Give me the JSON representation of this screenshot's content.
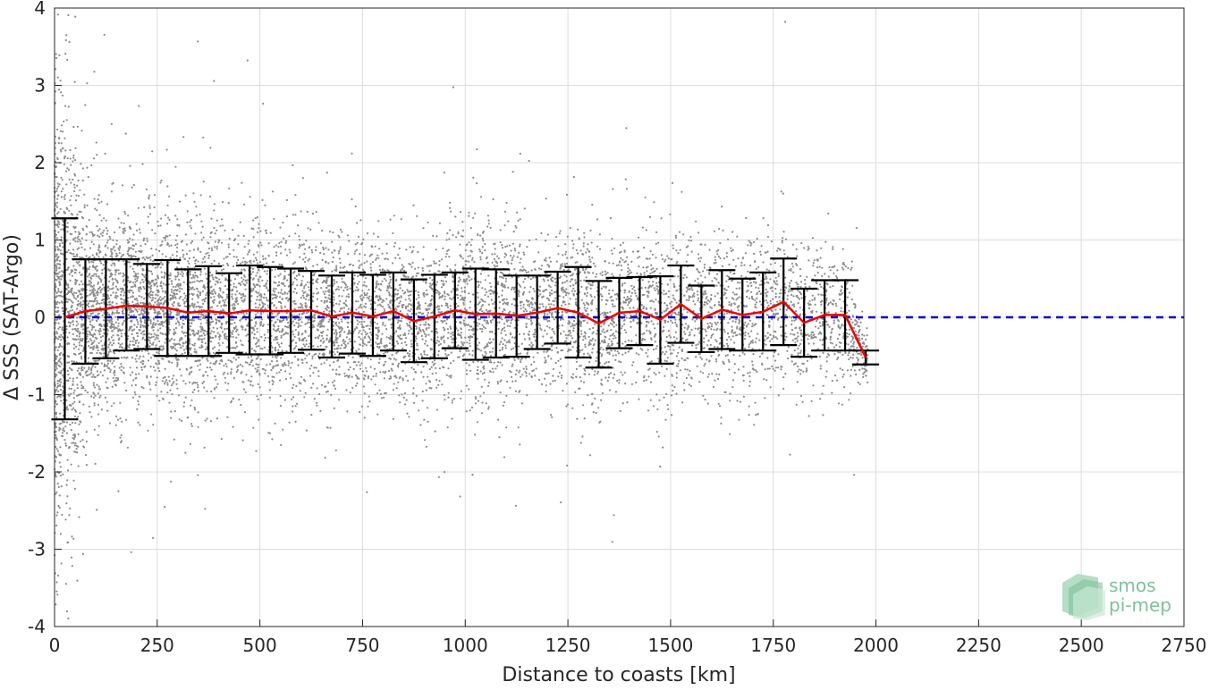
{
  "chart_data": {
    "type": "scatter",
    "title": "",
    "xlabel": "Distance to coasts [km]",
    "ylabel": "Δ SSS (SAT-Argo)",
    "xlim": [
      0,
      2750
    ],
    "ylim": [
      -4,
      4
    ],
    "xticks": [
      0,
      250,
      500,
      750,
      1000,
      1250,
      1500,
      1750,
      2000,
      2250,
      2500,
      2750
    ],
    "yticks": [
      -4,
      -3,
      -2,
      -1,
      0,
      1,
      2,
      3,
      4
    ],
    "grid": true,
    "reference_line": {
      "y": 0,
      "style": "dashed",
      "color": "#0000dd"
    },
    "series": [
      {
        "kind": "scatter",
        "color": "#8c8c8c",
        "extent_km": [
          0,
          1980
        ],
        "description_points": "dense cloud of individual match-up differences"
      },
      {
        "kind": "line-with-errorbars",
        "color": "#ee0000",
        "errorbar_color": "#000000",
        "x": [
          25,
          75,
          125,
          175,
          225,
          275,
          325,
          375,
          425,
          475,
          525,
          575,
          625,
          675,
          725,
          775,
          825,
          875,
          925,
          975,
          1025,
          1075,
          1125,
          1175,
          1225,
          1275,
          1325,
          1375,
          1425,
          1475,
          1525,
          1575,
          1625,
          1675,
          1725,
          1775,
          1825,
          1875,
          1925,
          1975
        ],
        "mean": [
          0.0,
          0.08,
          0.11,
          0.15,
          0.14,
          0.12,
          0.06,
          0.08,
          0.05,
          0.09,
          0.08,
          0.08,
          0.09,
          0.01,
          0.06,
          0.01,
          0.08,
          -0.05,
          0.01,
          0.09,
          0.04,
          0.05,
          0.02,
          0.06,
          0.12,
          0.06,
          -0.08,
          0.06,
          0.08,
          -0.03,
          0.17,
          -0.02,
          0.1,
          0.03,
          0.07,
          0.2,
          -0.07,
          0.03,
          0.03,
          -0.52
        ],
        "upper": [
          1.28,
          0.75,
          0.75,
          0.75,
          0.69,
          0.74,
          0.62,
          0.66,
          0.57,
          0.67,
          0.65,
          0.63,
          0.6,
          0.54,
          0.58,
          0.55,
          0.58,
          0.49,
          0.55,
          0.58,
          0.63,
          0.62,
          0.54,
          0.54,
          0.59,
          0.65,
          0.47,
          0.51,
          0.52,
          0.53,
          0.67,
          0.41,
          0.61,
          0.5,
          0.58,
          0.76,
          0.37,
          0.48,
          0.48,
          -0.43
        ],
        "lower": [
          -1.32,
          -0.6,
          -0.53,
          -0.43,
          -0.41,
          -0.5,
          -0.5,
          -0.5,
          -0.46,
          -0.48,
          -0.48,
          -0.46,
          -0.42,
          -0.52,
          -0.47,
          -0.5,
          -0.43,
          -0.58,
          -0.53,
          -0.4,
          -0.55,
          -0.52,
          -0.51,
          -0.41,
          -0.34,
          -0.52,
          -0.65,
          -0.4,
          -0.36,
          -0.6,
          -0.33,
          -0.45,
          -0.41,
          -0.43,
          -0.43,
          -0.36,
          -0.51,
          -0.43,
          -0.43,
          -0.61
        ]
      }
    ]
  },
  "logo": {
    "line1": "smos",
    "line2": "pi-mep",
    "color": "#7fbf9b"
  }
}
